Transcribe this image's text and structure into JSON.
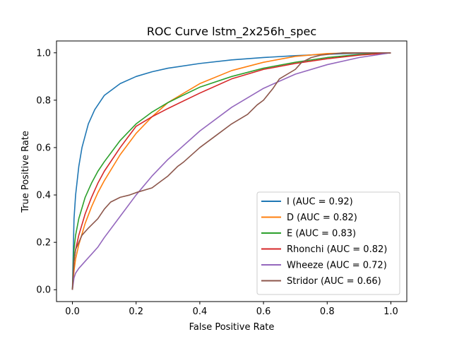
{
  "chart_data": {
    "type": "line",
    "title": "ROC Curve lstm_2x256h_spec",
    "xlabel": "False Positive Rate",
    "ylabel": "True Positive Rate",
    "xlim": [
      -0.05,
      1.05
    ],
    "ylim": [
      -0.05,
      1.05
    ],
    "xticks": [
      "0.0",
      "0.2",
      "0.4",
      "0.6",
      "0.8",
      "1.0"
    ],
    "yticks": [
      "0.0",
      "0.2",
      "0.4",
      "0.6",
      "0.8",
      "1.0"
    ],
    "grid": false,
    "legend_position": "lower-right",
    "series": [
      {
        "name": "I (AUC = 0.92)",
        "color": "#1f77b4",
        "x": [
          0,
          0.005,
          0.01,
          0.02,
          0.03,
          0.05,
          0.07,
          0.1,
          0.15,
          0.2,
          0.25,
          0.3,
          0.4,
          0.5,
          0.6,
          0.7,
          0.8,
          0.9,
          1.0
        ],
        "y": [
          0,
          0.3,
          0.4,
          0.52,
          0.6,
          0.7,
          0.76,
          0.82,
          0.87,
          0.9,
          0.92,
          0.935,
          0.955,
          0.97,
          0.98,
          0.988,
          0.994,
          0.998,
          1.0
        ]
      },
      {
        "name": "D (AUC = 0.82)",
        "color": "#ff7f0e",
        "x": [
          0,
          0.005,
          0.01,
          0.02,
          0.04,
          0.06,
          0.08,
          0.1,
          0.15,
          0.2,
          0.25,
          0.3,
          0.4,
          0.5,
          0.6,
          0.7,
          0.8,
          0.9,
          1.0
        ],
        "y": [
          0,
          0.08,
          0.13,
          0.19,
          0.28,
          0.35,
          0.41,
          0.46,
          0.57,
          0.66,
          0.73,
          0.79,
          0.87,
          0.925,
          0.96,
          0.985,
          0.997,
          1.0,
          1.0
        ]
      },
      {
        "name": "E (AUC = 0.83)",
        "color": "#2ca02c",
        "x": [
          0,
          0.005,
          0.01,
          0.02,
          0.04,
          0.06,
          0.08,
          0.1,
          0.15,
          0.2,
          0.25,
          0.3,
          0.4,
          0.5,
          0.6,
          0.7,
          0.8,
          0.9,
          1.0
        ],
        "y": [
          0,
          0.17,
          0.23,
          0.3,
          0.39,
          0.45,
          0.5,
          0.54,
          0.63,
          0.7,
          0.75,
          0.79,
          0.855,
          0.9,
          0.935,
          0.96,
          0.98,
          0.993,
          1.0
        ]
      },
      {
        "name": "Rhonchi (AUC = 0.82)",
        "color": "#d62728",
        "x": [
          0,
          0.005,
          0.01,
          0.02,
          0.04,
          0.06,
          0.08,
          0.1,
          0.15,
          0.2,
          0.25,
          0.3,
          0.4,
          0.5,
          0.6,
          0.7,
          0.8,
          0.9,
          1.0
        ],
        "y": [
          0,
          0.12,
          0.17,
          0.23,
          0.32,
          0.39,
          0.45,
          0.5,
          0.6,
          0.69,
          0.73,
          0.765,
          0.83,
          0.89,
          0.93,
          0.955,
          0.975,
          0.99,
          1.0
        ]
      },
      {
        "name": "Wheeze (AUC = 0.72)",
        "color": "#9467bd",
        "x": [
          0,
          0.005,
          0.01,
          0.02,
          0.04,
          0.06,
          0.08,
          0.1,
          0.15,
          0.2,
          0.25,
          0.3,
          0.4,
          0.5,
          0.6,
          0.7,
          0.8,
          0.9,
          1.0
        ],
        "y": [
          0,
          0.05,
          0.07,
          0.09,
          0.12,
          0.15,
          0.18,
          0.22,
          0.31,
          0.4,
          0.48,
          0.55,
          0.67,
          0.77,
          0.85,
          0.91,
          0.95,
          0.98,
          1.0
        ]
      },
      {
        "name": "Stridor (AUC = 0.66)",
        "color": "#8c564b",
        "x": [
          0,
          0.005,
          0.01,
          0.02,
          0.03,
          0.05,
          0.08,
          0.1,
          0.12,
          0.15,
          0.18,
          0.2,
          0.25,
          0.28,
          0.3,
          0.33,
          0.35,
          0.4,
          0.45,
          0.5,
          0.55,
          0.58,
          0.6,
          0.63,
          0.65,
          0.7,
          0.72,
          0.75,
          0.78,
          0.8,
          0.85,
          0.9,
          1.0
        ],
        "y": [
          0,
          0.12,
          0.17,
          0.2,
          0.23,
          0.26,
          0.3,
          0.34,
          0.37,
          0.39,
          0.4,
          0.41,
          0.43,
          0.46,
          0.48,
          0.52,
          0.54,
          0.6,
          0.65,
          0.7,
          0.74,
          0.78,
          0.8,
          0.85,
          0.89,
          0.93,
          0.96,
          0.98,
          0.99,
          0.993,
          1.0,
          1.0,
          1.0
        ]
      }
    ]
  }
}
